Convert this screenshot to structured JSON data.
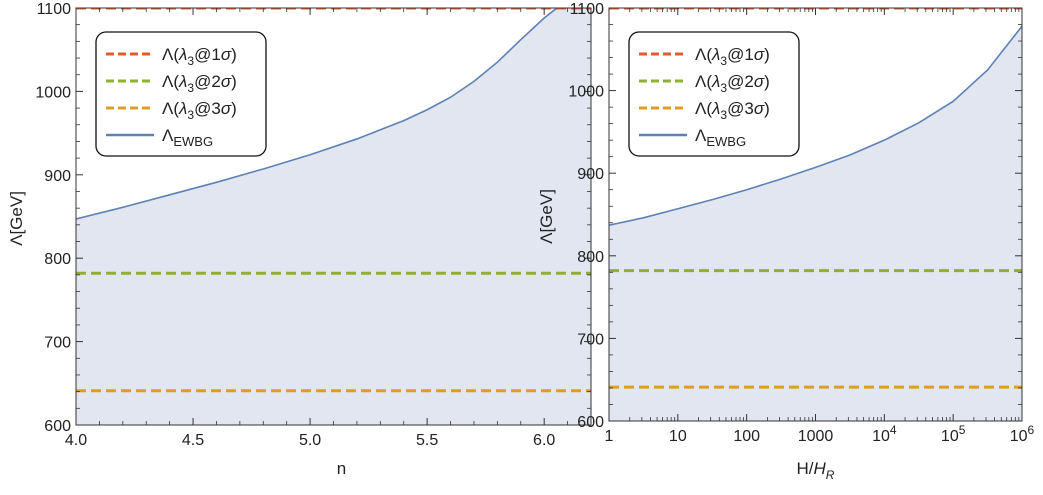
{
  "chart_data": [
    {
      "type": "area",
      "xlabel": "n",
      "ylabel": "Λ[GeV]",
      "xscale": "linear",
      "xlim": [
        4.0,
        6.2
      ],
      "ylim": [
        600,
        1100
      ],
      "xticks": [
        4.0,
        4.5,
        5.0,
        5.5,
        6.0
      ],
      "xtick_labels": [
        "4.0",
        "4.5",
        "5.0",
        "5.5",
        "6.0"
      ],
      "yticks": [
        600,
        700,
        800,
        900,
        1000,
        1100
      ],
      "ytick_labels": [
        "600",
        "700",
        "800",
        "900",
        "1000",
        "1100"
      ],
      "legend_position": "top-left",
      "grid": false,
      "series": [
        {
          "name": "Λ(λ₃@1σ)",
          "style": "dashed",
          "color": "#E8582E",
          "x": [
            4.0,
            6.2
          ],
          "y": [
            1100,
            1100
          ]
        },
        {
          "name": "Λ(λ₃@2σ)",
          "style": "dashed",
          "color": "#8FB032",
          "x": [
            4.0,
            6.2
          ],
          "y": [
            782,
            782
          ]
        },
        {
          "name": "Λ(λ₃@3σ)",
          "style": "dashed",
          "color": "#E19C24",
          "x": [
            4.0,
            6.2
          ],
          "y": [
            641,
            641
          ]
        },
        {
          "name": "Λ_EWBG",
          "style": "solid",
          "color": "#5E81B5",
          "fill": "#E1E6F1",
          "x": [
            4.0,
            4.2,
            4.4,
            4.6,
            4.8,
            5.0,
            5.2,
            5.4,
            5.5,
            5.6,
            5.7,
            5.8,
            5.9,
            6.0,
            6.05,
            6.08
          ],
          "y": [
            847,
            861,
            876,
            891,
            907,
            924,
            943,
            965,
            978,
            993,
            1012,
            1035,
            1062,
            1088,
            1099,
            1100
          ]
        }
      ]
    },
    {
      "type": "area",
      "xlabel": "H/H_R",
      "ylabel": "Λ[GeV]",
      "xscale": "log",
      "xlim": [
        1,
        1000000
      ],
      "ylim": [
        600,
        1100
      ],
      "xticks": [
        1,
        10,
        100,
        1000,
        10000,
        100000,
        1000000
      ],
      "xtick_labels": [
        "1",
        "10",
        "100",
        "1000",
        "10^4",
        "10^5",
        "10^6"
      ],
      "yticks": [
        600,
        700,
        800,
        900,
        1000,
        1100
      ],
      "ytick_labels": [
        "600",
        "700",
        "800",
        "900",
        "1000",
        "1100"
      ],
      "legend_position": "top-left",
      "grid": false,
      "series": [
        {
          "name": "Λ(λ₃@1σ)",
          "style": "dashed",
          "color": "#E8582E",
          "x": [
            1,
            1000000
          ],
          "y": [
            1100,
            1100
          ]
        },
        {
          "name": "Λ(λ₃@2σ)",
          "style": "dashed",
          "color": "#8FB032",
          "x": [
            1,
            1000000
          ],
          "y": [
            782,
            782
          ]
        },
        {
          "name": "Λ(λ₃@3σ)",
          "style": "dashed",
          "color": "#E19C24",
          "x": [
            1,
            1000000
          ],
          "y": [
            641,
            641
          ]
        },
        {
          "name": "Λ_EWBG",
          "style": "solid",
          "color": "#5E81B5",
          "fill": "#E1E6F1",
          "x": [
            1,
            3.16,
            10,
            31.6,
            100,
            316,
            1000,
            3162,
            10000,
            31623,
            100000,
            316228,
            1000000
          ],
          "y": [
            837,
            846,
            857,
            868,
            880,
            893,
            907,
            922,
            940,
            961,
            987,
            1025,
            1078
          ]
        }
      ]
    }
  ],
  "legend": {
    "labels": [
      {
        "base": "Λ(",
        "sym": "λ",
        "sub": "3",
        "mid": "@",
        "level": "1",
        "sig": "σ",
        "tail": ")"
      },
      {
        "base": "Λ(",
        "sym": "λ",
        "sub": "3",
        "mid": "@",
        "level": "2",
        "sig": "σ",
        "tail": ")"
      },
      {
        "base": "Λ(",
        "sym": "λ",
        "sub": "3",
        "mid": "@",
        "level": "3",
        "sig": "σ",
        "tail": ")"
      },
      {
        "base": "Λ",
        "sub": "EWBG"
      }
    ]
  },
  "xlabel_right": {
    "main": "H/",
    "italic": "H",
    "sub": "R"
  },
  "tick_exponent_base": "10"
}
